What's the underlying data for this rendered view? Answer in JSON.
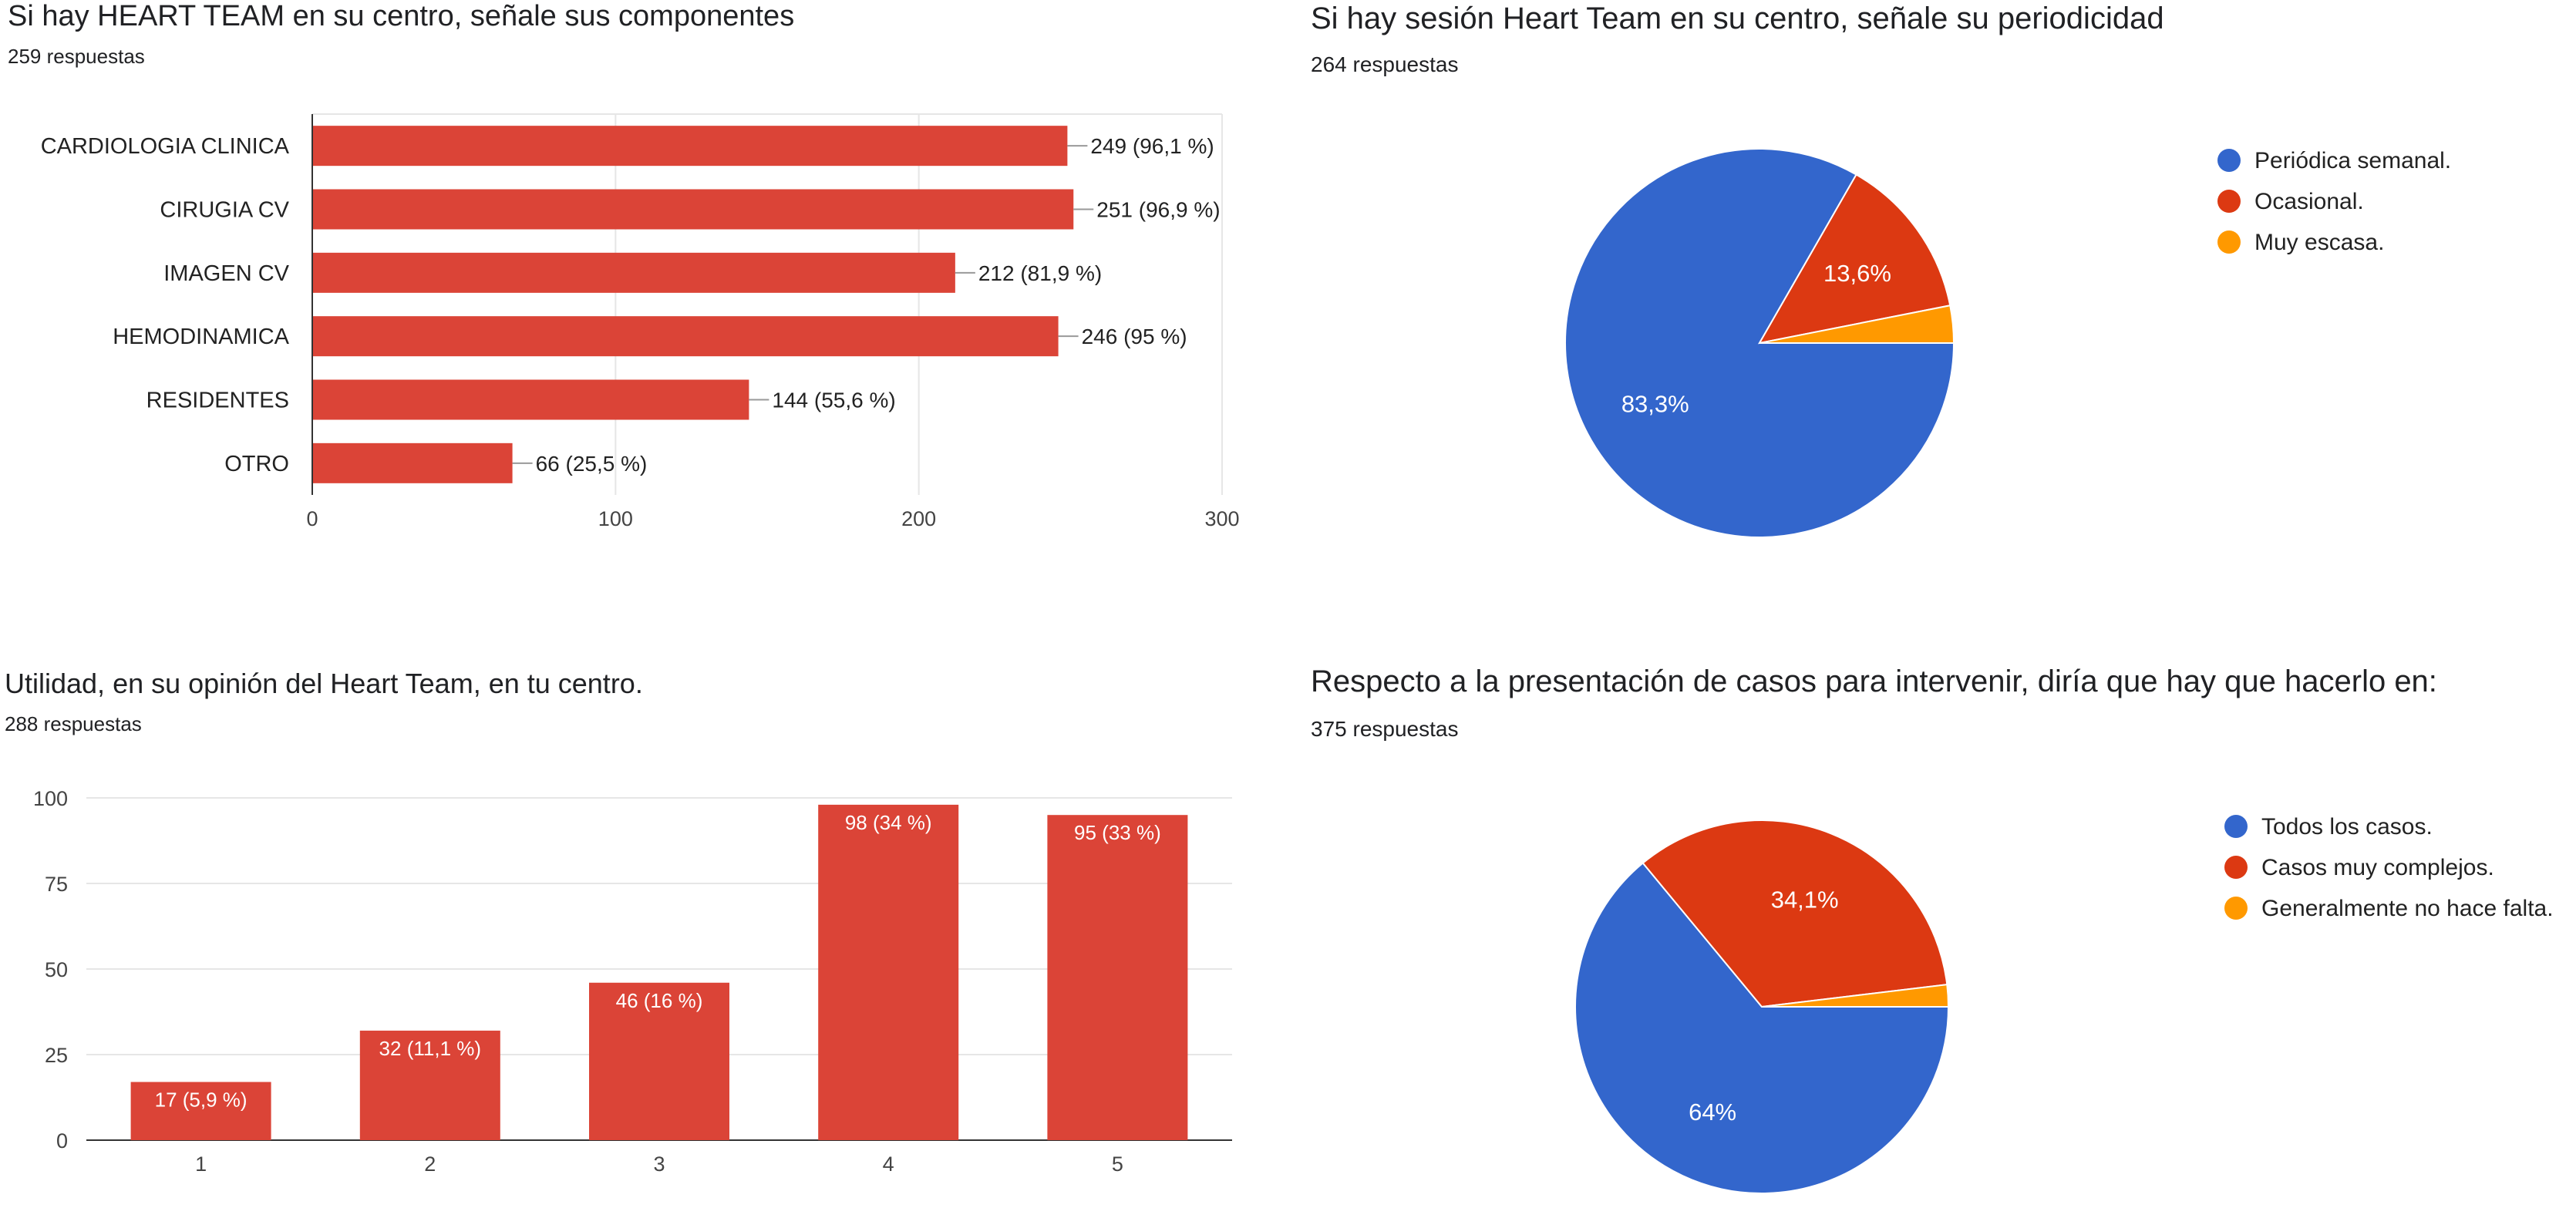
{
  "colors": {
    "bar": "#db4437",
    "blue": "#3366cc",
    "red": "#dc3912",
    "orange": "#ff9900",
    "grid": "#e6e6e6",
    "axis": "#444444",
    "text": "#202124"
  },
  "chart_data": [
    {
      "type": "bar",
      "orientation": "horizontal",
      "title": "Si hay HEART TEAM en su centro, señale sus componentes",
      "subtitle": "259 respuestas",
      "categories": [
        "CARDIOLOGIA CLINICA",
        "CIRUGIA  CV",
        "IMAGEN CV",
        "HEMODINAMICA",
        "RESIDENTES",
        "OTRO"
      ],
      "values": [
        249,
        251,
        212,
        246,
        144,
        66
      ],
      "labels": [
        "249 (96,1 %)",
        "251 (96,9 %)",
        "212 (81,9 %)",
        "246 (95 %)",
        "144 (55,6 %)",
        "66 (25,5 %)"
      ],
      "xlim": [
        0,
        300
      ],
      "ticks": [
        "0",
        "100",
        "200",
        "300"
      ],
      "grid": true
    },
    {
      "type": "pie",
      "title": "Si hay sesión Heart Team en su centro, señale su periodicidad",
      "subtitle": "264 respuestas",
      "slices": [
        {
          "name": "Periódica semanal.",
          "value": 83.3,
          "label": "83,3%",
          "color": "#3366cc"
        },
        {
          "name": "Ocasional.",
          "value": 13.6,
          "label": "13,6%",
          "color": "#dc3912"
        },
        {
          "name": "Muy escasa.",
          "value": 3.1,
          "label": "",
          "color": "#ff9900"
        }
      ],
      "legend": "right"
    },
    {
      "type": "bar",
      "orientation": "vertical",
      "title": "Utilidad, en su opinión del Heart Team, en tu centro.",
      "subtitle": "288 respuestas",
      "categories": [
        "1",
        "2",
        "3",
        "4",
        "5"
      ],
      "values": [
        17,
        32,
        46,
        98,
        95
      ],
      "labels": [
        "17 (5,9 %)",
        "32 (11,1 %)",
        "46 (16 %)",
        "98 (34 %)",
        "95 (33 %)"
      ],
      "ylim": [
        0,
        100
      ],
      "ticks": [
        "0",
        "25",
        "50",
        "75",
        "100"
      ],
      "grid": true
    },
    {
      "type": "pie",
      "title": "Respecto a la presentación de casos para intervenir, diría que hay que hacerlo en:",
      "subtitle": "375 respuestas",
      "slices": [
        {
          "name": "Todos los casos.",
          "value": 64.0,
          "label": "64%",
          "color": "#3366cc"
        },
        {
          "name": "Casos muy complejos.",
          "value": 34.1,
          "label": "34,1%",
          "color": "#dc3912"
        },
        {
          "name": "Generalmente no hace falta.",
          "value": 1.9,
          "label": "",
          "color": "#ff9900"
        }
      ],
      "legend": "right"
    }
  ]
}
